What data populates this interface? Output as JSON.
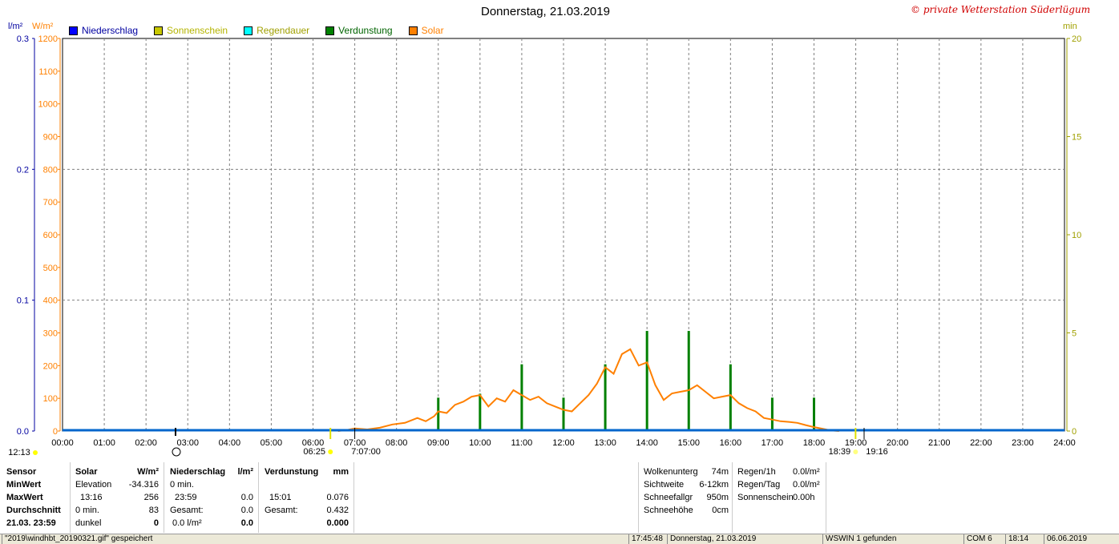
{
  "title": "Donnerstag, 21.03.2019",
  "copyright": "© private Wetterstation Süderlügum",
  "units": {
    "left1": "l/m²",
    "left2": "W/m²",
    "right": "min"
  },
  "legend": [
    {
      "label": "Niederschlag",
      "color": "#0000ff",
      "text_color": "#0000a0"
    },
    {
      "label": "Sonnenschein",
      "color": "#c8c800",
      "text_color": "#b4b400"
    },
    {
      "label": "Regendauer",
      "color": "#00ffff",
      "text_color": "#a0a000"
    },
    {
      "label": "Verdunstung",
      "color": "#008000",
      "text_color": "#006400"
    },
    {
      "label": "Solar",
      "color": "#ff8000",
      "text_color": "#ff8000"
    }
  ],
  "chart_data": {
    "type": "line",
    "x_unit": "time of day (hours)",
    "xlim": [
      0,
      24
    ],
    "x_ticks": [
      "00:00",
      "01:00",
      "02:00",
      "03:00",
      "04:00",
      "05:00",
      "06:00",
      "07:00",
      "08:00",
      "09:00",
      "10:00",
      "11:00",
      "12:00",
      "13:00",
      "14:00",
      "15:00",
      "16:00",
      "17:00",
      "18:00",
      "19:00",
      "20:00",
      "21:00",
      "22:00",
      "23:00",
      "24:00"
    ],
    "y_left_precip": {
      "ticks": [
        "0.0",
        "0.1",
        "0.2",
        "0.3"
      ],
      "ylim": [
        0,
        0.3
      ]
    },
    "y_left_solar": {
      "ticks": [
        "0",
        "100",
        "200",
        "300",
        "400",
        "500",
        "600",
        "700",
        "800",
        "900",
        "1000",
        "1100",
        "1200"
      ],
      "ylim": [
        0,
        1200
      ]
    },
    "y_right": {
      "ticks": [
        "0",
        "5",
        "10",
        "15",
        "20"
      ],
      "ylim": [
        0,
        20
      ]
    },
    "grid": true,
    "series": [
      {
        "name": "Solar",
        "color": "#ff8000",
        "axis": "solar",
        "points": [
          [
            6.6,
            0
          ],
          [
            6.8,
            3
          ],
          [
            7.0,
            8
          ],
          [
            7.3,
            5
          ],
          [
            7.6,
            10
          ],
          [
            7.9,
            20
          ],
          [
            8.2,
            25
          ],
          [
            8.5,
            40
          ],
          [
            8.7,
            30
          ],
          [
            8.9,
            45
          ],
          [
            9.0,
            60
          ],
          [
            9.2,
            55
          ],
          [
            9.4,
            80
          ],
          [
            9.6,
            90
          ],
          [
            9.8,
            105
          ],
          [
            10.0,
            110
          ],
          [
            10.2,
            75
          ],
          [
            10.4,
            100
          ],
          [
            10.6,
            90
          ],
          [
            10.8,
            125
          ],
          [
            11.0,
            110
          ],
          [
            11.2,
            95
          ],
          [
            11.4,
            105
          ],
          [
            11.6,
            85
          ],
          [
            11.8,
            75
          ],
          [
            12.0,
            65
          ],
          [
            12.2,
            60
          ],
          [
            12.4,
            85
          ],
          [
            12.6,
            110
          ],
          [
            12.8,
            145
          ],
          [
            13.0,
            195
          ],
          [
            13.2,
            175
          ],
          [
            13.4,
            235
          ],
          [
            13.6,
            250
          ],
          [
            13.8,
            200
          ],
          [
            14.0,
            210
          ],
          [
            14.2,
            140
          ],
          [
            14.4,
            95
          ],
          [
            14.6,
            115
          ],
          [
            14.8,
            120
          ],
          [
            15.0,
            125
          ],
          [
            15.2,
            140
          ],
          [
            15.4,
            120
          ],
          [
            15.6,
            100
          ],
          [
            15.8,
            105
          ],
          [
            16.0,
            110
          ],
          [
            16.2,
            85
          ],
          [
            16.4,
            70
          ],
          [
            16.6,
            60
          ],
          [
            16.8,
            40
          ],
          [
            17.0,
            35
          ],
          [
            17.2,
            30
          ],
          [
            17.4,
            28
          ],
          [
            17.6,
            25
          ],
          [
            17.8,
            18
          ],
          [
            18.0,
            12
          ],
          [
            18.2,
            7
          ],
          [
            18.4,
            2
          ],
          [
            18.6,
            0
          ]
        ]
      },
      {
        "name": "Verdunstung",
        "color": "#008000",
        "axis": "right",
        "bars": [
          [
            9.0,
            1.7
          ],
          [
            10.0,
            1.9
          ],
          [
            11.0,
            3.4
          ],
          [
            12.0,
            1.7
          ],
          [
            13.0,
            3.4
          ],
          [
            14.0,
            5.1
          ],
          [
            15.0,
            5.1
          ],
          [
            16.0,
            3.4
          ],
          [
            17.0,
            1.7
          ],
          [
            18.0,
            1.7
          ]
        ]
      },
      {
        "name": "Niederschlag",
        "color": "#0066cc",
        "axis": "precip",
        "points": [
          [
            0,
            0
          ],
          [
            24,
            0
          ]
        ]
      }
    ],
    "annotations": {
      "sunrise": "06:25",
      "sunset": "18:39",
      "moonrise": "12:13",
      "civil_start": "7:07:00",
      "civil_end": "19:16"
    }
  },
  "stats": {
    "sensor": {
      "header": "Sensor",
      "rows": [
        "MinWert",
        "MaxWert",
        "Durchschnitt",
        "21.03. 23:59"
      ]
    },
    "solar": {
      "header": "Solar",
      "unit": "W/m²",
      "rows": [
        [
          "Elevation",
          "-34.316"
        ],
        [
          "13:16",
          "256"
        ],
        [
          "0 min.",
          "83"
        ],
        [
          "dunkel",
          "0"
        ]
      ]
    },
    "niederschlag": {
      "header": "Niederschlag",
      "unit": "l/m²",
      "rows": [
        [
          "0 min.",
          ""
        ],
        [
          "23:59",
          "0.0"
        ],
        [
          "Gesamt:",
          "0.0"
        ],
        [
          "0.0 l/m²",
          "0.0"
        ]
      ]
    },
    "verdunstung": {
      "header": "Verdunstung",
      "unit": "mm",
      "rows": [
        [
          "",
          ""
        ],
        [
          "15:01",
          "0.076"
        ],
        [
          "Gesamt:",
          "0.432"
        ],
        [
          "",
          "0.000"
        ]
      ]
    },
    "weather": [
      [
        "Wolkenunterg",
        "74m"
      ],
      [
        "Sichtweite",
        "6-12km"
      ],
      [
        "Schneefallgr",
        "950m"
      ],
      [
        "Schneehöhe",
        "0cm"
      ]
    ],
    "rain": [
      [
        "Regen/1h",
        "0.0l/m²"
      ],
      [
        "Regen/Tag",
        "0.0l/m²"
      ],
      [
        "Sonnenschein",
        "0.00h"
      ]
    ]
  },
  "statusbar": {
    "file": "\"2019\\windhbt_20190321.gif\" gespeichert",
    "time": "17:45:48",
    "date": "Donnerstag, 21.03.2019",
    "ws": "WSWIN 1 gefunden",
    "com": "COM 6",
    "clock": "18:14",
    "today": "06.06.2019"
  }
}
